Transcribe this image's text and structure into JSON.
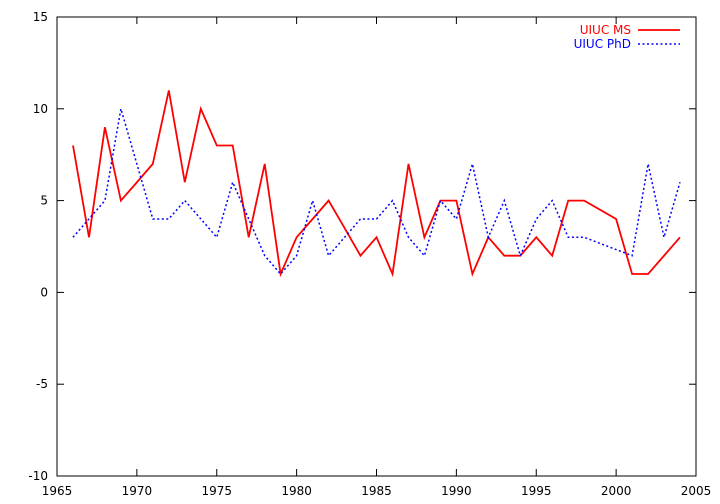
{
  "chart_data": {
    "type": "line",
    "title": "",
    "xlabel": "",
    "ylabel": "",
    "xlim": [
      1965,
      2005
    ],
    "ylim": [
      -10,
      15
    ],
    "x_ticks": [
      1965,
      1970,
      1975,
      1980,
      1985,
      1990,
      1995,
      2000,
      2005
    ],
    "y_ticks": [
      -10,
      -5,
      0,
      5,
      10,
      15
    ],
    "grid": false,
    "legend_position": "top-right",
    "series": [
      {
        "name": "UIUC MS",
        "color": "#ff0000",
        "style": "solid",
        "x": [
          1966,
          1967,
          1968,
          1969,
          1971,
          1972,
          1973,
          1974,
          1975,
          1976,
          1977,
          1978,
          1979,
          1980,
          1981,
          1982,
          1983,
          1984,
          1985,
          1986,
          1987,
          1988,
          1989,
          1990,
          1991,
          1992,
          1993,
          1994,
          1995,
          1996,
          1997,
          1998,
          2000,
          2001,
          2002,
          2004
        ],
        "y": [
          8,
          3,
          9,
          5,
          7,
          11,
          6,
          10,
          8,
          8,
          3,
          7,
          1,
          3,
          4,
          5,
          3.5,
          2,
          3,
          1,
          7,
          3,
          5,
          5,
          1,
          3,
          2,
          2,
          3,
          2,
          5,
          5,
          4,
          1,
          1,
          3
        ]
      },
      {
        "name": "UIUC PhD",
        "color": "#0000ff",
        "style": "dotted",
        "x": [
          1966,
          1968,
          1969,
          1971,
          1972,
          1973,
          1975,
          1976,
          1978,
          1979,
          1980,
          1981,
          1982,
          1984,
          1985,
          1986,
          1987,
          1988,
          1989,
          1990,
          1991,
          1992,
          1993,
          1994,
          1995,
          1996,
          1997,
          1998,
          2001,
          2002,
          2003,
          2004
        ],
        "y": [
          3,
          5,
          10,
          4,
          4,
          5,
          3,
          6,
          2,
          1,
          2,
          5,
          2,
          4,
          4,
          5,
          3,
          2,
          5,
          4,
          7,
          3,
          5,
          2,
          4,
          5,
          3,
          3,
          2,
          7,
          3,
          6
        ]
      }
    ]
  }
}
